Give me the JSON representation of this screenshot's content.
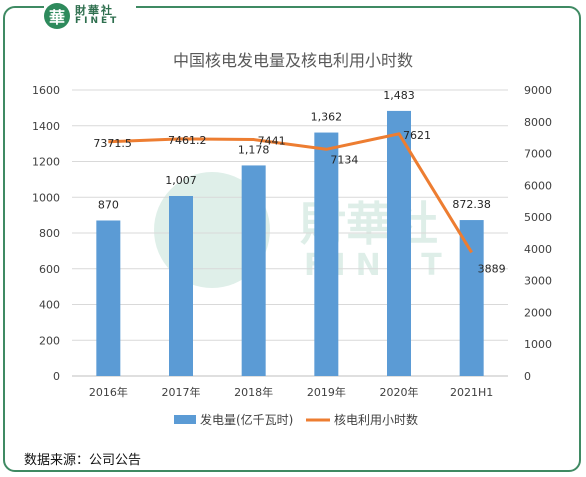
{
  "brand": {
    "mark": "華",
    "name_cn": "財華社",
    "name_en": "FINET",
    "watermark_cn": "財華社",
    "watermark_en": "FINET"
  },
  "source": "数据来源：公司公告",
  "colors": {
    "bar": "#5b9bd5",
    "line": "#ed7d31",
    "frame": "#3f8a63",
    "watermark": "#3a9a77"
  },
  "chart_data": {
    "type": "bar",
    "title": "中国核电发电量及核电利用小时数",
    "categories": [
      "2016年",
      "2017年",
      "2018年",
      "2019年",
      "2020年",
      "2021H1"
    ],
    "series": [
      {
        "name": "发电量(亿千瓦时)",
        "type": "bar",
        "axis": "left",
        "values": [
          870,
          1007,
          1178,
          1362,
          1483,
          872.38
        ],
        "labels": [
          "870",
          "1,007",
          "1,178",
          "1,362",
          "1,483",
          "872.38"
        ]
      },
      {
        "name": "核电利用小时数",
        "type": "line",
        "axis": "right",
        "values": [
          7371.5,
          7461.2,
          7441,
          7134,
          7621,
          3889
        ],
        "labels": [
          "7371.5",
          "7461.2",
          "7441",
          "7134",
          "7621",
          "3889"
        ]
      }
    ],
    "y_left": {
      "range": [
        0,
        1600
      ],
      "ticks": [
        "0",
        "200",
        "400",
        "600",
        "800",
        "1000",
        "1200",
        "1400",
        "1600"
      ]
    },
    "y_right": {
      "range": [
        0,
        9000
      ],
      "ticks": [
        "0",
        "1000",
        "2000",
        "3000",
        "4000",
        "5000",
        "6000",
        "7000",
        "8000",
        "9000"
      ]
    },
    "grid": true,
    "legend": "bottom"
  }
}
